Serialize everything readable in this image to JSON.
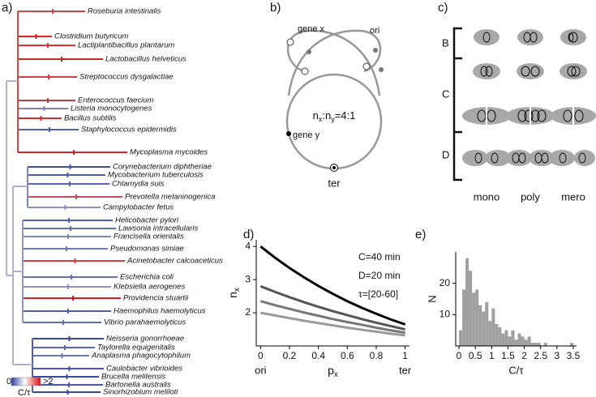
{
  "panel_labels": [
    "a)",
    "b)",
    "c)",
    "d)",
    "e)"
  ],
  "tree": {
    "species": [
      "Roseburia intestinalis",
      "Clostridium butyricum",
      "Lactiplantibacillus plantarum",
      "Lactobacillus helveticus",
      "Streptococcus dysgalactiae",
      "Enterococcus faecium",
      "Listeria monocytogenes",
      "Bacillus subtilis",
      "Staphylococcus epidermidis",
      "Mycoplasma mycoides",
      "Corynebacterium diphtheriae",
      "Mycobacterium tuberculosis",
      "Chlamydia suis",
      "Prevotella melaninogenica",
      "Campylobacter fetus",
      "Helicobacter pylori",
      "Lawsonia intracellularis",
      "Francisella orientalis",
      "Pseudomonas simiae",
      "Acinetobacter calcoaceticus",
      "Escherichia coli",
      "Klebsiella aerogenes",
      "Providencia stuartii",
      "Haemophilus haemolyticus",
      "Vibrio parahaemolyticus",
      "Neisseria gonorrhoeae",
      "Taylorella equigenitalis",
      "Anaplasma phagocytophilum",
      "Caulobacter vibrioides",
      "Brucella melitensis",
      "Bartonella australis",
      "Sinorhizobium meliloti"
    ],
    "colorbar": {
      "min_label": "0",
      "max_label": ">2",
      "title": "C/τ"
    }
  },
  "diagram_b": {
    "gene_x": "gene x",
    "ori": "ori",
    "gene_y": "gene y",
    "ter": "ter",
    "ratio": [
      "n",
      "x",
      ":n",
      "y",
      "=4:1"
    ]
  },
  "diagram_c": {
    "phases": [
      "B",
      "C",
      "D"
    ],
    "columns": [
      "mono",
      "poly",
      "mero"
    ]
  },
  "chart_data": [
    {
      "type": "line",
      "x": [
        0,
        0.1,
        0.2,
        0.3,
        0.4,
        0.5,
        0.6,
        0.7,
        0.8,
        0.9,
        1
      ],
      "series": [
        {
          "color": "#000000",
          "values": [
            4.0,
            3.66,
            3.35,
            3.07,
            2.81,
            2.57,
            2.35,
            2.15,
            1.97,
            1.8,
            1.65
          ]
        },
        {
          "color": "#555555",
          "values": [
            2.8,
            2.63,
            2.47,
            2.32,
            2.18,
            2.05,
            1.93,
            1.81,
            1.7,
            1.6,
            1.5
          ]
        },
        {
          "color": "#777777",
          "values": [
            2.35,
            2.23,
            2.12,
            2.01,
            1.91,
            1.81,
            1.72,
            1.64,
            1.55,
            1.47,
            1.4
          ]
        },
        {
          "color": "#9a9a9a",
          "values": [
            2.0,
            1.92,
            1.84,
            1.76,
            1.69,
            1.62,
            1.55,
            1.49,
            1.43,
            1.37,
            1.32
          ]
        }
      ],
      "xlim": [
        -0.03,
        1.03
      ],
      "ylim": [
        1,
        4.2
      ],
      "xticks": [
        0,
        0.2,
        0.4,
        0.6,
        0.8,
        1
      ],
      "yticks": [
        2,
        3,
        4
      ],
      "xlabel": {
        "text": "p",
        "subscript": "x"
      },
      "ylabel": {
        "text": "n",
        "subscript": "x"
      },
      "x_end_labels": [
        "ori",
        "ter"
      ],
      "annotations": [
        "C=40 min",
        "D=20 min",
        "τ=[20-60]"
      ]
    },
    {
      "type": "histogram",
      "color": "#a0a0a0",
      "bins": [
        0,
        0.1,
        0.2,
        0.3,
        0.4,
        0.5,
        0.6,
        0.7,
        0.8,
        0.9,
        1.0,
        1.1,
        1.2,
        1.3,
        1.4,
        1.5,
        1.6,
        1.7,
        1.8,
        1.9,
        2.0,
        2.1,
        2.2,
        2.3,
        2.4,
        2.5,
        2.6,
        2.7,
        2.8,
        2.9,
        3.0,
        3.1,
        3.2,
        3.3,
        3.4,
        3.5
      ],
      "values": [
        5,
        18,
        28,
        24,
        17,
        18,
        13,
        11,
        14,
        8,
        12,
        7,
        6,
        4,
        5,
        3,
        5,
        2,
        4,
        3,
        2,
        3,
        1,
        1,
        1,
        0,
        1,
        0,
        0,
        0,
        0,
        0,
        0,
        0,
        1
      ],
      "xlim": [
        -0.1,
        3.6
      ],
      "ylim": [
        0,
        30
      ],
      "xticks": [
        0,
        0.5,
        1,
        1.5,
        2,
        2.5,
        3,
        3.5
      ],
      "yticks": [
        10,
        20
      ],
      "xlabel": "C/τ",
      "ylabel": "N"
    }
  ]
}
